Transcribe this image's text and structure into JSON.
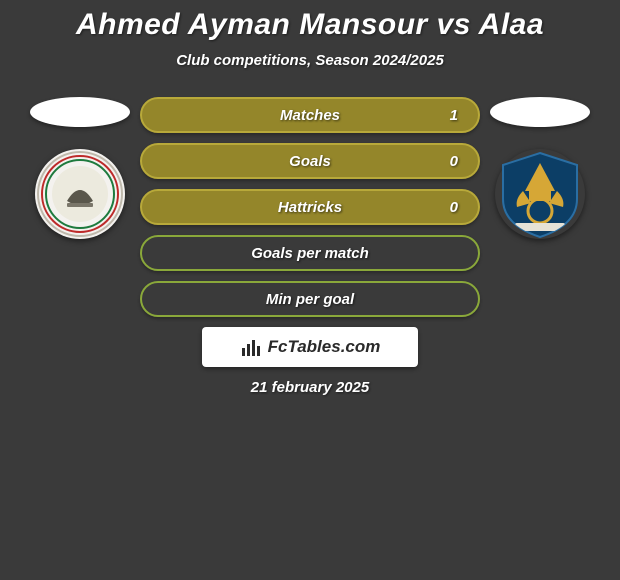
{
  "title": "Ahmed Ayman Mansour vs Alaa",
  "subtitle": "Club competitions, Season 2024/2025",
  "date": "21 february 2025",
  "branding": "FcTables.com",
  "colors": {
    "background": "#3a3a3a",
    "stat_fill": "#94862a",
    "stat_border_data": "#b8a93a",
    "stat_border_empty": "#8aa83a",
    "empty_fill": "transparent",
    "text": "#ffffff"
  },
  "fontsize": {
    "title": 30,
    "subtitle": 15,
    "stat": 15,
    "date": 15
  },
  "left_player": {
    "ellipse_color": "#ffffff",
    "badge": {
      "bg": "#f4f2ef",
      "rings": [
        {
          "r": 42,
          "stroke": "#bfb9ac",
          "w": 2
        },
        {
          "r": 38,
          "stroke": "#bd2a2a",
          "w": 2
        },
        {
          "r": 34,
          "stroke": "#1e7a3e",
          "w": 2
        }
      ],
      "inner": "#dcd8ce"
    }
  },
  "right_player": {
    "ellipse_color": "#ffffff",
    "badge": {
      "bg": "#0c3e66",
      "pharaoh": "#d6a736",
      "ring": "#d6a736",
      "banner": "#e6e2d6"
    }
  },
  "stats": [
    {
      "label": "Matches",
      "value": "1",
      "has_value": true,
      "fill": "#94862a",
      "border": "#b8a93a"
    },
    {
      "label": "Goals",
      "value": "0",
      "has_value": true,
      "fill": "#94862a",
      "border": "#b8a93a"
    },
    {
      "label": "Hattricks",
      "value": "0",
      "has_value": true,
      "fill": "#94862a",
      "border": "#b8a93a"
    },
    {
      "label": "Goals per match",
      "value": "",
      "has_value": false,
      "fill": "transparent",
      "border": "#8aa83a"
    },
    {
      "label": "Min per goal",
      "value": "",
      "has_value": false,
      "fill": "transparent",
      "border": "#8aa83a"
    }
  ]
}
